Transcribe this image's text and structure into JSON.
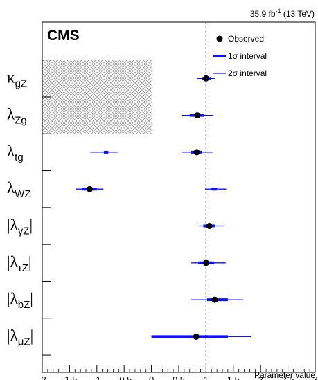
{
  "chart_data": {
    "type": "scatter",
    "title": "",
    "experiment": "CMS",
    "luminosity": "35.9 fb",
    "luminosity_sup": "-1",
    "energy": " (13 TeV)",
    "xlabel": "Parameter value",
    "xlim": [
      -2,
      3
    ],
    "xticks": [
      "-2",
      "-1.5",
      "-1",
      "-0.5",
      "0",
      "0.5",
      "1",
      "1.5",
      "2",
      "2.5",
      "3"
    ],
    "reference_line_x": 1,
    "excluded_region": {
      "x": [
        -2,
        0
      ],
      "parameters": [
        "κgZ",
        "λZg"
      ]
    },
    "legend": {
      "placement": "top-right",
      "observed": "Observed",
      "sigma1": "1σ interval",
      "sigma2": "2σ interval"
    },
    "parameters": [
      {
        "base": "κ",
        "sub": "gZ",
        "abs": false
      },
      {
        "base": "λ",
        "sub": "Zg",
        "abs": false
      },
      {
        "base": "λ",
        "sub": "tg",
        "abs": false
      },
      {
        "base": "λ",
        "sub": "WZ",
        "abs": false
      },
      {
        "base": "λ",
        "sub": "γZ",
        "abs": true
      },
      {
        "base": "λ",
        "sub": "τZ",
        "abs": true
      },
      {
        "base": "λ",
        "sub": "bZ",
        "abs": true
      },
      {
        "base": "λ",
        "sub": "μZ",
        "abs": true
      }
    ],
    "series": [
      {
        "name": "Observed",
        "values": [
          1.0,
          0.84,
          0.83,
          -1.13,
          1.06,
          1.0,
          1.16,
          0.82
        ]
      },
      {
        "name": "1σ interval",
        "segments": [
          [
            [
              0.92,
              1.09
            ]
          ],
          [
            [
              0.7,
              0.97
            ]
          ],
          [
            [
              -0.87,
              -0.79
            ],
            [
              0.72,
              0.93
            ]
          ],
          [
            [
              -1.27,
              -1.0
            ],
            [
              1.1,
              1.2
            ]
          ],
          [
            [
              0.95,
              1.17
            ]
          ],
          [
            [
              0.86,
              1.15
            ]
          ],
          [
            [
              1.02,
              1.4
            ]
          ],
          [
            [
              0.0,
              1.4
            ]
          ]
        ]
      },
      {
        "name": "2σ interval",
        "segments": [
          [
            [
              0.84,
              1.17
            ]
          ],
          [
            [
              0.55,
              1.13
            ]
          ],
          [
            [
              -1.12,
              -0.62
            ],
            [
              0.55,
              1.12
            ]
          ],
          [
            [
              -1.39,
              -0.88
            ],
            [
              0.98,
              1.37
            ]
          ],
          [
            [
              0.87,
              1.33
            ]
          ],
          [
            [
              0.73,
              1.36
            ]
          ],
          [
            [
              0.73,
              1.68
            ]
          ],
          [
            [
              0.0,
              1.82
            ]
          ]
        ]
      }
    ]
  }
}
